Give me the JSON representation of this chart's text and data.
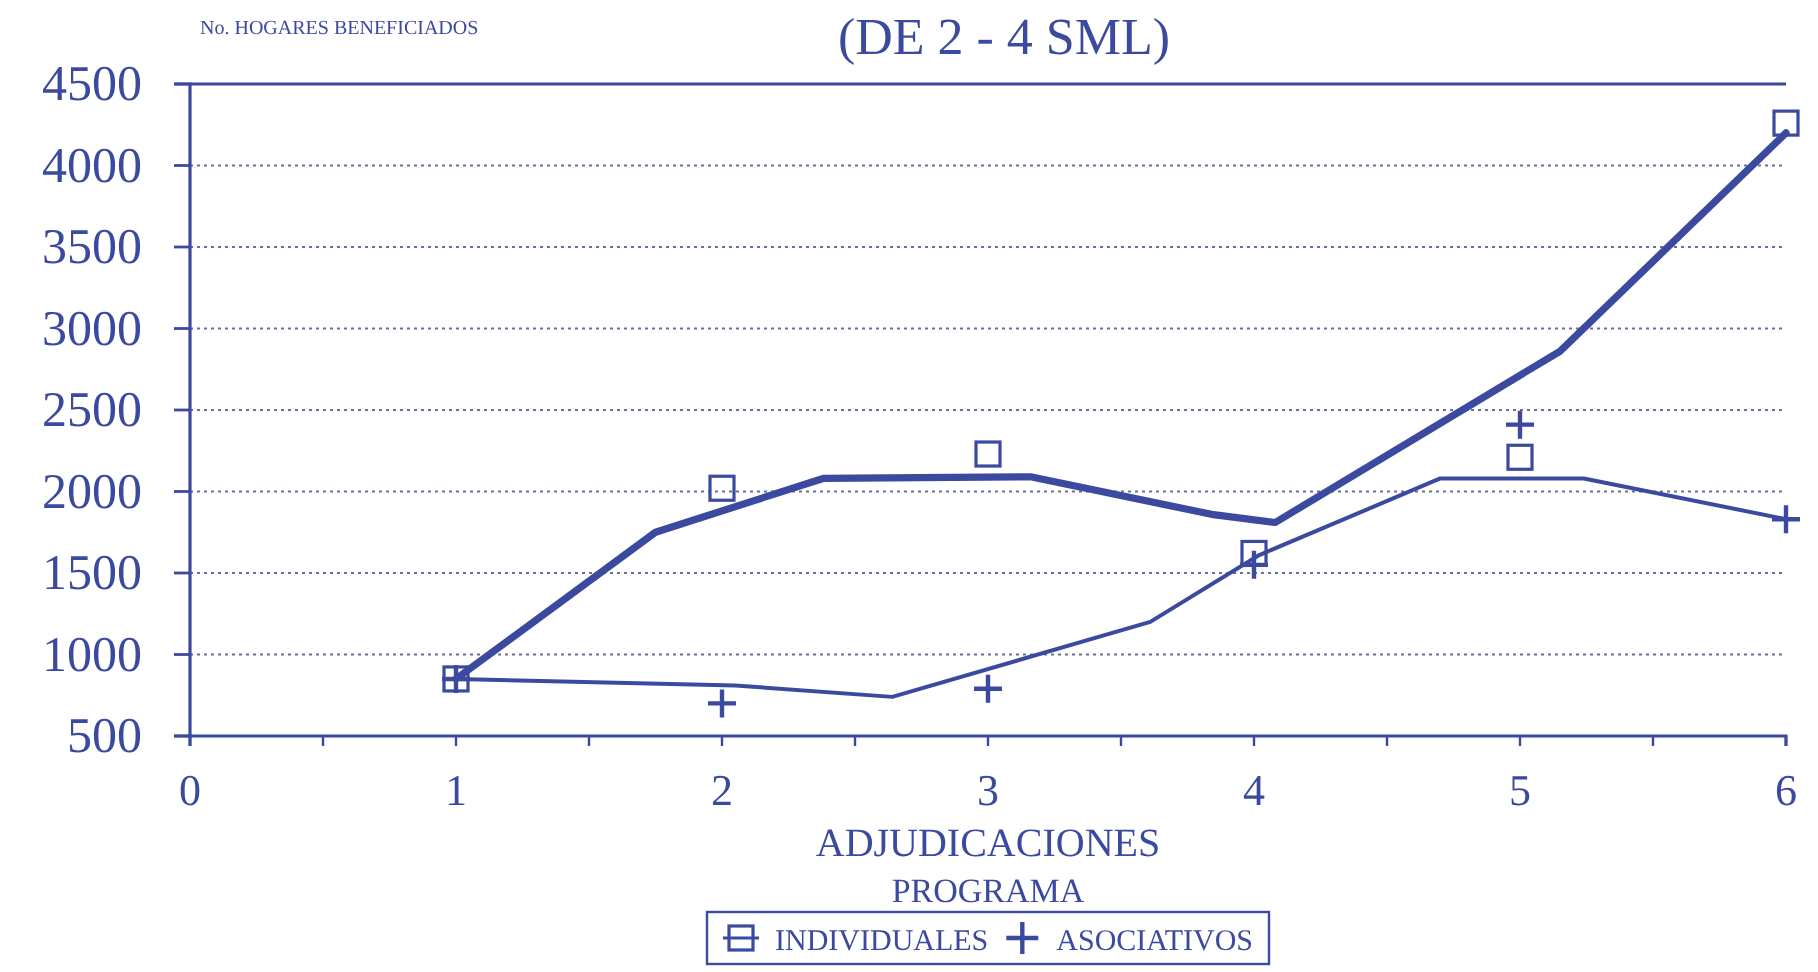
{
  "chart_data": {
    "type": "line",
    "title": "(DE 2 - 4 SML)",
    "ylabel": "No. HOGARES BENEFICIADOS",
    "xlabel": "ADJUDICACIONES\nPROGRAMA",
    "xlim": [
      0,
      6
    ],
    "xticks": [
      0,
      {
        "value": 0.5,
        "label": null
      },
      1,
      {
        "value": 1.5,
        "label": null
      },
      2,
      {
        "value": 2.5,
        "label": null
      },
      3,
      {
        "value": 3.5,
        "label": null
      },
      4,
      {
        "value": 4.5,
        "label": null
      },
      5,
      {
        "value": 5.5,
        "label": null
      },
      6
    ],
    "ylim": [
      500,
      4500
    ],
    "yticks": [
      500,
      1000,
      1500,
      2000,
      2500,
      3000,
      3500,
      4000,
      4500
    ],
    "grid": "y",
    "legend": "bottom",
    "series": [
      {
        "name": "INDIVIDUALES",
        "type": "scatter",
        "marker": "square",
        "color": "#3b4a9e",
        "x": [
          1,
          2,
          3,
          4,
          5,
          6
        ],
        "values": [
          850,
          2020,
          2230,
          1620,
          2210,
          4260
        ]
      },
      {
        "color": "#3b4a9e",
        "x": [
          1,
          1.75,
          2.38,
          3.16,
          3.84,
          4.08,
          5.15,
          6
        ],
        "values": [
          850,
          1750,
          2080,
          2090,
          1860,
          1810,
          2860,
          4200
        ]
      },
      {
        "name": "ASOCIATIVOS",
        "type": "scatter",
        "marker": "cross",
        "color": "#3b4a9e",
        "x": [
          1,
          2,
          3,
          4,
          5,
          6
        ],
        "values": [
          850,
          700,
          790,
          1550,
          2410,
          1830
        ]
      },
      {
        "color": "#3b4a9e",
        "x": [
          1,
          2.05,
          2.64,
          3.61,
          4.02,
          4.7,
          5.24,
          6
        ],
        "values": [
          850,
          810,
          740,
          1200,
          1610,
          2080,
          2080,
          1830
        ]
      }
    ]
  }
}
